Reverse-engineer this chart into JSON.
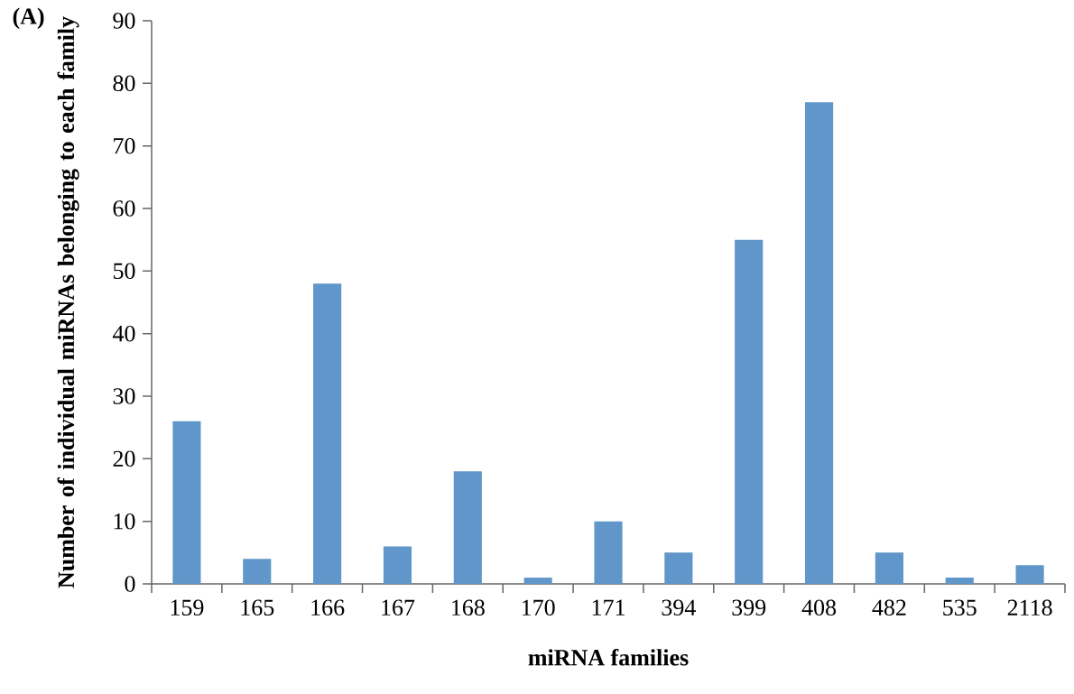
{
  "chart_data": {
    "type": "bar",
    "categories": [
      "159",
      "165",
      "166",
      "167",
      "168",
      "170",
      "171",
      "394",
      "399",
      "408",
      "482",
      "535",
      "2118"
    ],
    "values": [
      26,
      4,
      48,
      6,
      18,
      1,
      10,
      5,
      55,
      77,
      5,
      1,
      3
    ],
    "color": "#6096c9",
    "xlabel": "miRNA families",
    "ylabel": "Number of individual miRNAs belonging to each family",
    "ylim": [
      0,
      90
    ],
    "yticks": [
      0,
      10,
      20,
      30,
      40,
      50,
      60,
      70,
      80,
      90
    ],
    "annotations": [
      "(A)"
    ]
  }
}
